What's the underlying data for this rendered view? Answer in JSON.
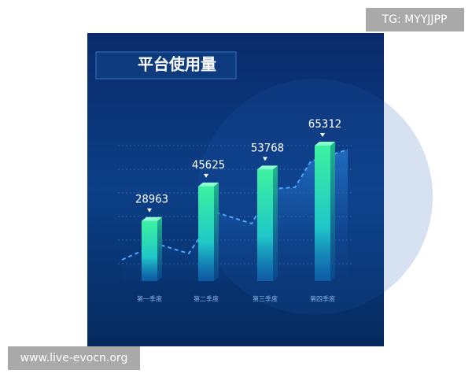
{
  "chart_data": {
    "type": "bar",
    "title": "平台使用量",
    "categories": [
      "第一季度",
      "第二季度",
      "第三季度",
      "第四季度"
    ],
    "values": [
      28963,
      45625,
      53768,
      65312
    ]
  },
  "watermarks": [
    "TG: MYYJJPP",
    "www.live-evocn.org"
  ]
}
